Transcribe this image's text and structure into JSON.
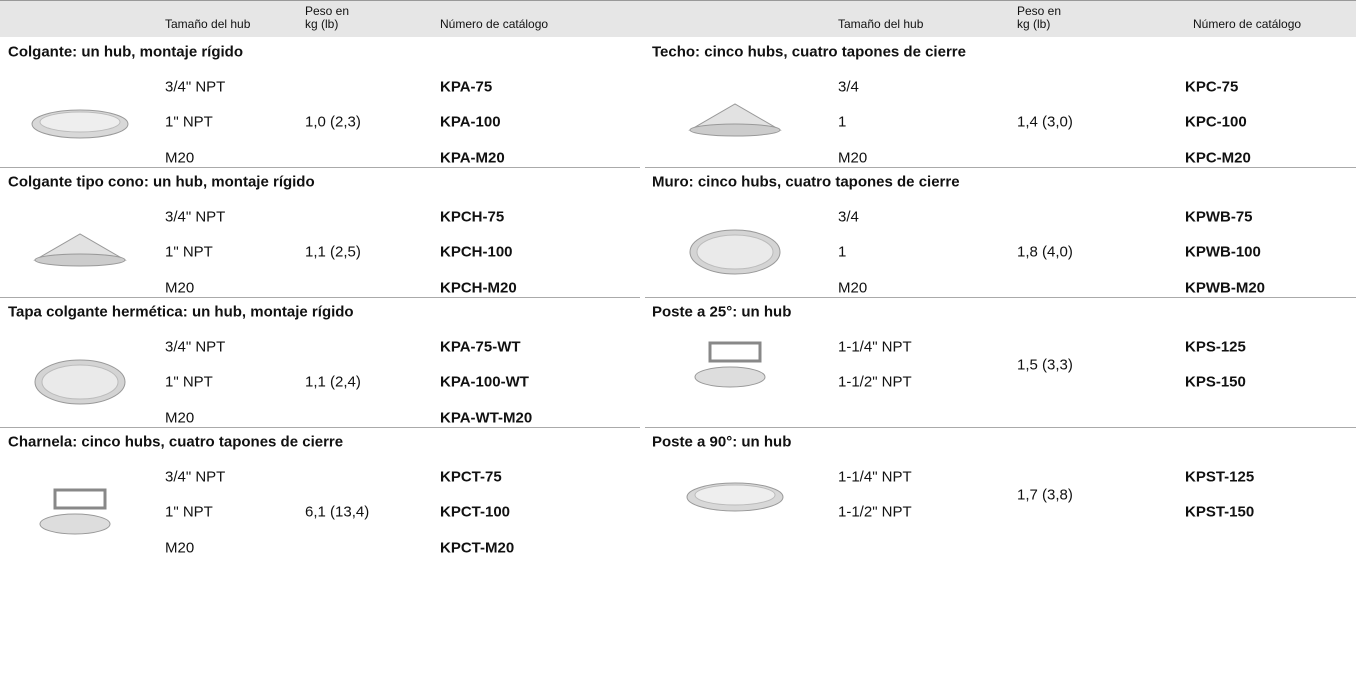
{
  "header": {
    "hub_size": "Tamaño del hub",
    "weight": "Peso en kg (lb)",
    "catalog": "Número de catálogo"
  },
  "left": [
    {
      "title": "Colgante: un hub, montaje rígido",
      "weight": "1,0 (2,3)",
      "rows": [
        {
          "hub": "3/4\" NPT",
          "catalog": "KPA-75"
        },
        {
          "hub": "1\" NPT",
          "catalog": "KPA-100"
        },
        {
          "hub": "M20",
          "catalog": "KPA-M20"
        }
      ]
    },
    {
      "title": "Colgante tipo cono: un hub, montaje rígido",
      "weight": "1,1 (2,5)",
      "rows": [
        {
          "hub": "3/4\" NPT",
          "catalog": "KPCH-75"
        },
        {
          "hub": "1\" NPT",
          "catalog": "KPCH-100"
        },
        {
          "hub": "M20",
          "catalog": "KPCH-M20"
        }
      ]
    },
    {
      "title": "Tapa colgante hermética: un hub, montaje rígido",
      "weight": "1,1 (2,4)",
      "rows": [
        {
          "hub": "3/4\" NPT",
          "catalog": "KPA-75-WT"
        },
        {
          "hub": "1\" NPT",
          "catalog": "KPA-100-WT"
        },
        {
          "hub": "M20",
          "catalog": "KPA-WT-M20"
        }
      ]
    },
    {
      "title": "Charnela: cinco hubs, cuatro tapones de cierre",
      "weight": "6,1 (13,4)",
      "rows": [
        {
          "hub": "3/4\" NPT",
          "catalog": "KPCT-75"
        },
        {
          "hub": "1\" NPT",
          "catalog": "KPCT-100"
        },
        {
          "hub": "M20",
          "catalog": "KPCT-M20"
        }
      ]
    }
  ],
  "right": [
    {
      "title": "Techo: cinco hubs, cuatro tapones de cierre",
      "weight": "1,4 (3,0)",
      "rows": [
        {
          "hub": "3/4",
          "catalog": "KPC-75"
        },
        {
          "hub": "1",
          "catalog": "KPC-100"
        },
        {
          "hub": "M20",
          "catalog": "KPC-M20"
        }
      ]
    },
    {
      "title": "Muro: cinco hubs, cuatro tapones de cierre",
      "weight": "1,8 (4,0)",
      "rows": [
        {
          "hub": "3/4",
          "catalog": "KPWB-75"
        },
        {
          "hub": "1",
          "catalog": "KPWB-100"
        },
        {
          "hub": "M20",
          "catalog": "KPWB-M20"
        }
      ]
    },
    {
      "title": "Poste a 25°: un hub",
      "weight": "1,5 (3,3)",
      "rows": [
        {
          "hub": "1-1/4\" NPT",
          "catalog": "KPS-125"
        },
        {
          "hub": "1-1/2\" NPT",
          "catalog": "KPS-150"
        }
      ]
    },
    {
      "title": "Poste a 90°: un hub",
      "weight": "1,7 (3,8)",
      "rows": [
        {
          "hub": "1-1/4\" NPT",
          "catalog": "KPST-125"
        },
        {
          "hub": "1-1/2\" NPT",
          "catalog": "KPST-150"
        }
      ]
    }
  ]
}
